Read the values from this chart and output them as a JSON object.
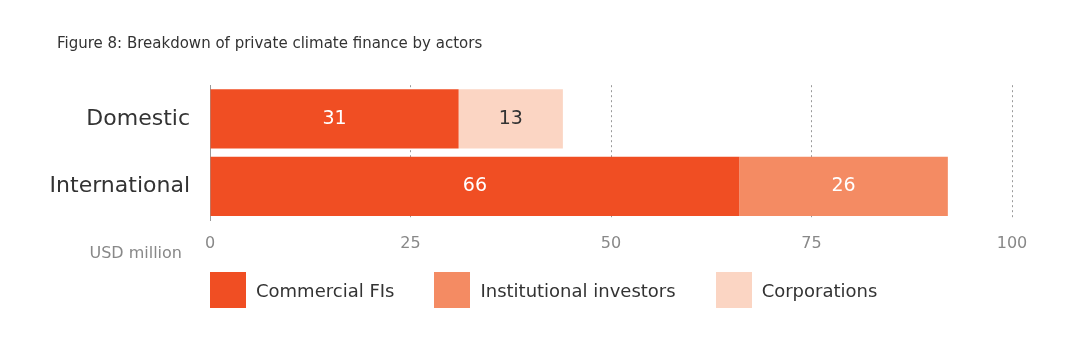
{
  "chart_data": {
    "type": "bar",
    "orientation": "horizontal",
    "stacked": true,
    "title": "Figure 8: Breakdown of private climate finance by actors",
    "xlabel": "USD million",
    "categories": [
      "Domestic",
      "International"
    ],
    "series": [
      {
        "name": "Commercial FIs",
        "color": "#f04e23",
        "values": [
          31,
          66
        ]
      },
      {
        "name": "Institutional investors",
        "color": "#f48b63",
        "values": [
          null,
          26
        ]
      },
      {
        "name": "Corporations",
        "color": "#fbd5c3",
        "values": [
          13,
          null
        ]
      }
    ],
    "xlim": [
      0,
      100
    ],
    "xticks": [
      0,
      25,
      50,
      75,
      100
    ],
    "grid": "x",
    "data_labels": true,
    "legend": "bottom"
  }
}
